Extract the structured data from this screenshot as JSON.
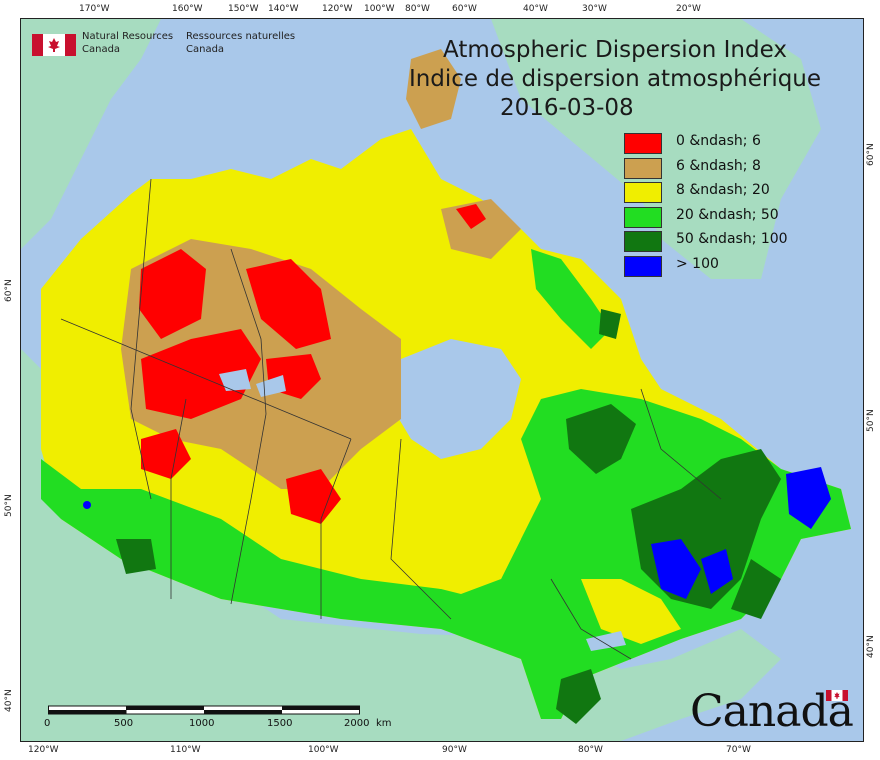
{
  "agency": {
    "name_en_line1": "Natural Resources",
    "name_en_line2": "Canada",
    "name_fr_line1": "Ressources naturelles",
    "name_fr_line2": "Canada"
  },
  "titles": {
    "title_en": "Atmospheric Dispersion Index",
    "title_fr": "Indice de dispersion atmosphérique",
    "date": "2016-03-08"
  },
  "legend": [
    {
      "label": "0 &ndash; 6",
      "color": "#ff0000"
    },
    {
      "label": "6 &ndash; 8",
      "color": "#cca050"
    },
    {
      "label": "8 &ndash; 20",
      "color": "#f0ee00"
    },
    {
      "label": "20 &ndash; 50",
      "color": "#22dd22"
    },
    {
      "label": "50 &ndash; 100",
      "color": "#117711"
    },
    {
      "label": "> 100",
      "color": "#0000ff"
    }
  ],
  "graticule": {
    "top_labels": [
      "170°W",
      "160°W",
      "150°W",
      "140°W",
      "120°W",
      "100°W",
      "80°W",
      "60°W",
      "40°W",
      "30°W",
      "20°W"
    ],
    "bottom_labels": [
      "120°W",
      "110°W",
      "100°W",
      "90°W",
      "80°W",
      "70°W"
    ],
    "left_labels": [
      "60°N",
      "50°N",
      "40°N"
    ],
    "right_labels": [
      "60°N",
      "50°N",
      "40°N"
    ]
  },
  "scalebar": {
    "labels": [
      "0",
      "500",
      "1000",
      "1500",
      "2000"
    ],
    "unit": "km"
  },
  "wordmark": "Canada",
  "colors": {
    "ocean": "#a9c8ea",
    "land_outside": "#a7dcc0",
    "province_border": "#333333"
  }
}
